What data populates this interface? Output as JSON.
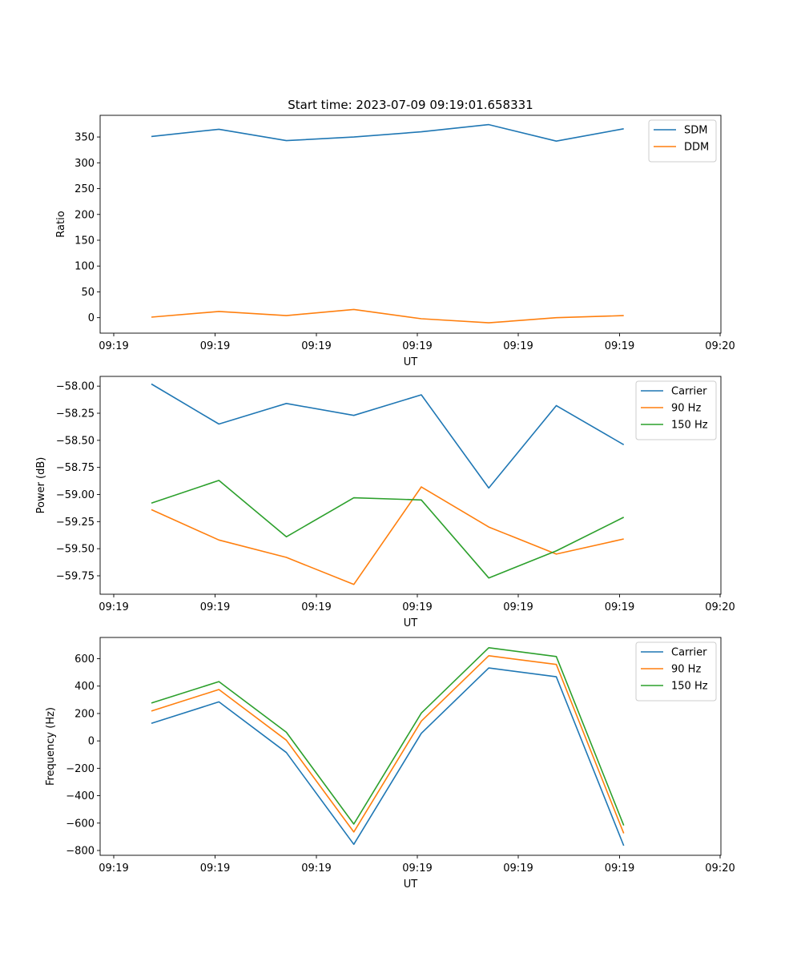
{
  "chart_data": [
    {
      "type": "line",
      "title": "Start time: 2023-07-09 09:19:01.658331",
      "xlabel": "UT",
      "ylabel": "Ratio",
      "x_ticks": [
        "09:19",
        "09:19",
        "09:19",
        "09:19",
        "09:19",
        "09:19",
        "09:20"
      ],
      "x": [
        1,
        2,
        3,
        4,
        5,
        6,
        7,
        8
      ],
      "xlim": [
        0.24,
        9.44
      ],
      "ylim": [
        -30,
        392
      ],
      "y_ticks": [
        0,
        50,
        100,
        150,
        200,
        250,
        300,
        350
      ],
      "legend_position": "top-right",
      "grid": false,
      "series": [
        {
          "name": "SDM",
          "color": "#1f77b4",
          "values": [
            351,
            365,
            343,
            350,
            360,
            374,
            342,
            366
          ]
        },
        {
          "name": "DDM",
          "color": "#ff7f0e",
          "values": [
            1,
            12,
            4,
            16,
            -2,
            -10,
            0,
            4
          ]
        }
      ]
    },
    {
      "type": "line",
      "title": "",
      "xlabel": "UT",
      "ylabel": "Power (dB)",
      "x_ticks": [
        "09:19",
        "09:19",
        "09:19",
        "09:19",
        "09:19",
        "09:19",
        "09:20"
      ],
      "x": [
        1,
        2,
        3,
        4,
        5,
        6,
        7,
        8
      ],
      "xlim": [
        0.24,
        9.44
      ],
      "ylim": [
        -59.92,
        -57.91
      ],
      "y_ticks": [
        -58.0,
        -58.25,
        -58.5,
        -58.75,
        -59.0,
        -59.25,
        -59.5,
        -59.75
      ],
      "y_tick_labels": [
        "−58.00",
        "−58.25",
        "−58.50",
        "−58.75",
        "−59.00",
        "−59.25",
        "−59.50",
        "−59.75"
      ],
      "legend_position": "top-right",
      "grid": false,
      "series": [
        {
          "name": "Carrier",
          "color": "#1f77b4",
          "values": [
            -57.98,
            -58.35,
            -58.16,
            -58.27,
            -58.08,
            -58.94,
            -58.18,
            -58.54
          ]
        },
        {
          "name": "90 Hz",
          "color": "#ff7f0e",
          "values": [
            -59.14,
            -59.42,
            -59.58,
            -59.83,
            -58.93,
            -59.3,
            -59.55,
            -59.41
          ]
        },
        {
          "name": "150 Hz",
          "color": "#2ca02c",
          "values": [
            -59.08,
            -58.87,
            -59.39,
            -59.03,
            -59.05,
            -59.77,
            -59.52,
            -59.21
          ]
        }
      ]
    },
    {
      "type": "line",
      "title": "",
      "xlabel": "UT",
      "ylabel": "Frequency (Hz)",
      "x_ticks": [
        "09:19",
        "09:19",
        "09:19",
        "09:19",
        "09:19",
        "09:19",
        "09:20"
      ],
      "x": [
        1,
        2,
        3,
        4,
        5,
        6,
        7,
        8
      ],
      "xlim": [
        0.24,
        9.44
      ],
      "ylim": [
        -835,
        755
      ],
      "y_ticks": [
        600,
        400,
        200,
        0,
        -200,
        -400,
        -600,
        -800
      ],
      "y_tick_labels": [
        "600",
        "400",
        "200",
        "0",
        "−200",
        "−400",
        "−600",
        "−800"
      ],
      "legend_position": "top-right",
      "grid": false,
      "series": [
        {
          "name": "Carrier",
          "color": "#1f77b4",
          "values": [
            128,
            285,
            -85,
            -755,
            55,
            532,
            468,
            -765
          ]
        },
        {
          "name": "90 Hz",
          "color": "#ff7f0e",
          "values": [
            218,
            375,
            5,
            -665,
            145,
            622,
            558,
            -675
          ]
        },
        {
          "name": "150 Hz",
          "color": "#2ca02c",
          "values": [
            276,
            433,
            63,
            -607,
            203,
            680,
            616,
            -617
          ]
        }
      ]
    }
  ]
}
